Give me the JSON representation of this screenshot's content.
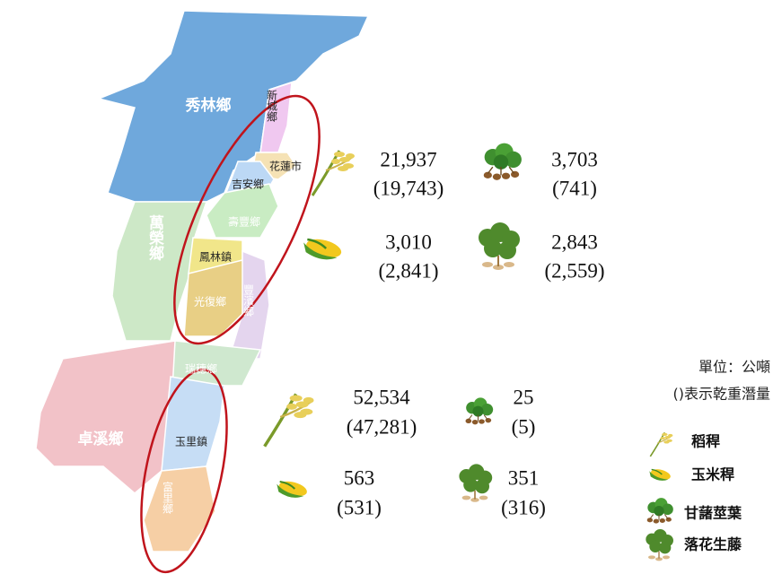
{
  "map": {
    "regions": [
      "秀林鄉",
      "新城鄉",
      "花蓮市",
      "吉安鄉",
      "壽豐鄉",
      "萬榮鄉",
      "鳳林鎮",
      "光復鄉",
      "豐濱鄉",
      "瑞穗鄉",
      "卓溪鄉",
      "玉里鎮",
      "富里鄉"
    ],
    "stats": [
      [
        "21,937",
        "(19,743)",
        "3,703",
        "(741)"
      ],
      [
        "3,010",
        "(2,841)",
        "2,843",
        "(2,559)"
      ],
      [
        "52,534",
        "(47,281)",
        "25",
        "(5)"
      ],
      [
        "563",
        "(531)",
        "351",
        "(316)"
      ]
    ],
    "unit": "單位：公噸",
    "note": "()表示乾重潛量",
    "legend": [
      "稻稈",
      "玉米稈",
      "甘藷莖葉",
      "落花生藤"
    ]
  }
}
